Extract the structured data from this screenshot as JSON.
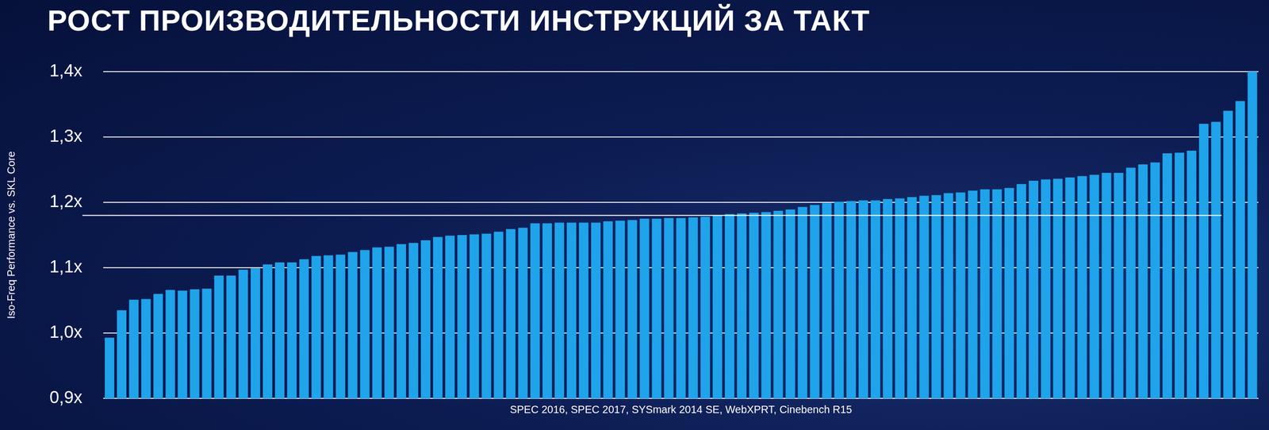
{
  "chart_data": {
    "type": "bar",
    "title": "РОСТ ПРОИЗВОДИТЕЛЬНОСТИ ИНСТРУКЦИЙ ЗА ТАКТ",
    "y_label": "Iso-Freq Performance vs. SKL Core",
    "x_label": "SPEC 2016, SPEC 2017, SYSmark 2014 SE, WebXPRT, Cinebench R15",
    "categories": [
      null,
      null,
      null,
      null,
      null,
      null,
      null,
      null,
      null,
      null,
      null,
      null,
      null,
      null,
      null,
      null,
      null,
      null,
      null,
      null,
      null,
      null,
      null,
      null,
      null,
      null,
      null,
      null,
      null,
      null,
      null,
      null,
      null,
      null,
      null,
      null,
      null,
      null,
      null,
      null,
      null,
      null,
      null,
      null,
      null,
      null,
      null,
      null,
      null,
      null,
      null,
      null,
      null,
      null,
      null,
      null,
      null,
      null,
      null,
      null,
      null,
      null,
      null,
      null,
      null,
      null,
      null,
      null,
      null,
      null,
      null,
      null,
      null,
      null,
      null,
      null,
      null,
      null,
      null,
      null,
      null,
      null,
      null,
      null,
      null,
      null,
      null,
      null,
      null,
      null,
      null,
      null,
      null,
      null,
      null
    ],
    "values": [
      0.993,
      1.035,
      1.051,
      1.052,
      1.06,
      1.066,
      1.065,
      1.067,
      1.068,
      1.088,
      1.088,
      1.097,
      1.099,
      1.105,
      1.108,
      1.108,
      1.113,
      1.118,
      1.119,
      1.12,
      1.124,
      1.127,
      1.131,
      1.132,
      1.136,
      1.138,
      1.142,
      1.147,
      1.149,
      1.15,
      1.151,
      1.152,
      1.155,
      1.159,
      1.161,
      1.168,
      1.168,
      1.169,
      1.169,
      1.169,
      1.169,
      1.171,
      1.172,
      1.173,
      1.175,
      1.175,
      1.176,
      1.176,
      1.177,
      1.178,
      1.18,
      1.182,
      1.183,
      1.184,
      1.185,
      1.187,
      1.189,
      1.193,
      1.196,
      1.199,
      1.201,
      1.202,
      1.203,
      1.203,
      1.205,
      1.206,
      1.208,
      1.21,
      1.211,
      1.214,
      1.215,
      1.218,
      1.22,
      1.22,
      1.222,
      1.228,
      1.233,
      1.235,
      1.236,
      1.238,
      1.24,
      1.242,
      1.245,
      1.245,
      1.253,
      1.258,
      1.261,
      1.275,
      1.276,
      1.279,
      1.32,
      1.323,
      1.34,
      1.355,
      1.4
    ],
    "color": "#1fa3ea",
    "reference_line": 1.18,
    "ylim": [
      0.9,
      1.4
    ],
    "yticks": [
      {
        "value": 0.9,
        "label": "0,9x"
      },
      {
        "value": 1.0,
        "label": "1,0x"
      },
      {
        "value": 1.1,
        "label": "1,1x"
      },
      {
        "value": 1.2,
        "label": "1,2x"
      },
      {
        "value": 1.3,
        "label": "1,3x"
      },
      {
        "value": 1.4,
        "label": "1,4x"
      }
    ],
    "grid": true,
    "tick_labels": "y"
  }
}
